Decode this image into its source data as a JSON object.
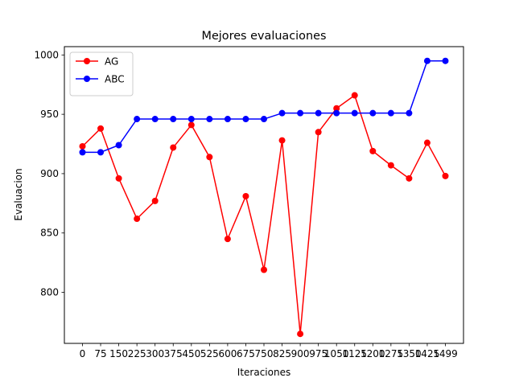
{
  "chart_data": {
    "type": "line",
    "title": "Mejores evaluaciones",
    "xlabel": "Iteraciones",
    "ylabel": "Evaluacion",
    "x": [
      0,
      75,
      150,
      225,
      300,
      375,
      450,
      525,
      600,
      675,
      750,
      825,
      900,
      975,
      1050,
      1125,
      1200,
      1275,
      1350,
      1425,
      1499
    ],
    "x_tick_labels": [
      "0",
      "75",
      "150",
      "225",
      "300",
      "375",
      "450",
      "525",
      "600",
      "675",
      "750",
      "825",
      "900",
      "975",
      "1050",
      "1125",
      "1200",
      "1275",
      "1350",
      "1425",
      "1499"
    ],
    "y_ticks": [
      800,
      850,
      900,
      950,
      1000
    ],
    "y_tick_labels": [
      "800",
      "850",
      "900",
      "950",
      "1000"
    ],
    "ylim": [
      757,
      1007
    ],
    "grid": false,
    "legend_position": "top-left",
    "series": [
      {
        "name": "AG",
        "color": "#ff0000",
        "marker": "circle",
        "values": [
          923,
          938,
          896,
          862,
          877,
          922,
          941,
          914,
          845,
          881,
          819,
          928,
          765,
          935,
          955,
          966,
          919,
          907,
          896,
          926,
          898
        ]
      },
      {
        "name": "ABC",
        "color": "#0000ff",
        "marker": "circle",
        "values": [
          918,
          918,
          924,
          946,
          946,
          946,
          946,
          946,
          946,
          946,
          946,
          951,
          951,
          951,
          951,
          951,
          951,
          951,
          951,
          995,
          995
        ]
      }
    ]
  }
}
